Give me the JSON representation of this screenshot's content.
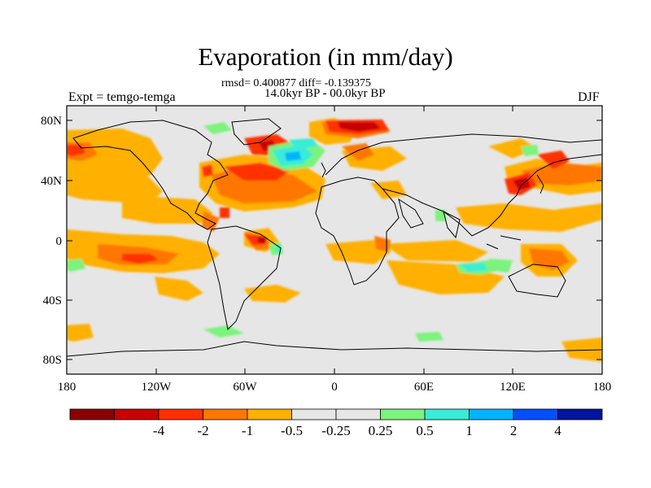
{
  "figure": {
    "title": "Evaporation (in mm/day)",
    "stats": "rmsd= 0.400877 diff= -0.139375",
    "period": "14.0kyr BP - 00.0kyr BP",
    "experiment": "Expt = temgo-temga",
    "season": "DJF"
  },
  "axes": {
    "lat_labels": [
      "80N",
      "40N",
      "0",
      "40S",
      "80S"
    ],
    "lon_labels": [
      "180",
      "120W",
      "60W",
      "0",
      "60E",
      "120E",
      "180"
    ]
  },
  "colorbar": {
    "colors": [
      "#8b0000",
      "#c80000",
      "#ff3000",
      "#ff7700",
      "#ffb000",
      "#e6e6e6",
      "#e6e6e6",
      "#7cf37c",
      "#38ecd8",
      "#00b4ff",
      "#0050ff",
      "#00149c"
    ],
    "labels": [
      "-4",
      "-2",
      "-1",
      "-0.5",
      "-0.25",
      "0.25",
      "0.5",
      "1",
      "2",
      "4"
    ]
  }
}
